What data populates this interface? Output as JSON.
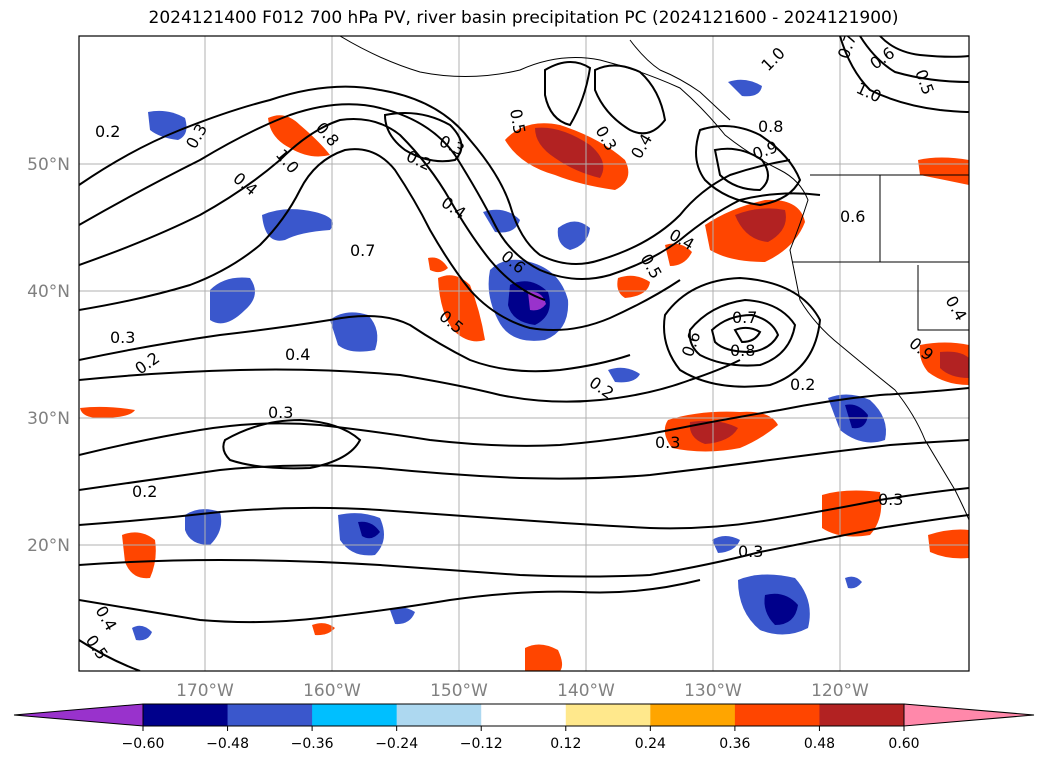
{
  "title": "2024121400 F012 700 hPa PV, river basin precipitation PC (2024121600 - 2024121900)",
  "lat_labels": [
    "50°N",
    "40°N",
    "30°N",
    "20°N"
  ],
  "lon_labels": [
    "170°W",
    "160°W",
    "150°W",
    "140°W",
    "130°W",
    "120°W"
  ],
  "colorbar": {
    "ticks": [
      "−0.60",
      "−0.48",
      "−0.36",
      "−0.24",
      "−0.12",
      "0.12",
      "0.24",
      "0.36",
      "0.48",
      "0.60"
    ],
    "colors": [
      "#9932cc",
      "#00008b",
      "#3a57cc",
      "#00bfff",
      "#add8f0",
      "#ffffff",
      "#ffe88c",
      "#ffa500",
      "#ff4500",
      "#b22222",
      "#ff88aa"
    ]
  },
  "contour_labels": [
    "0.2",
    "0.3",
    "0.4",
    "1.0",
    "0.8",
    "0.5",
    "0.3",
    "0.2",
    "0.4",
    "0.7",
    "0.6",
    "0.5",
    "0.3",
    "0.4",
    "0.8",
    "1.0",
    "0.9",
    "0.4",
    "0.5",
    "0.6",
    "0.7",
    "0.8",
    "0.6",
    "0.2",
    "0.3",
    "0.2",
    "0.2",
    "0.3",
    "0.4",
    "0.3",
    "0.2",
    "0.3",
    "0.3",
    "0.4",
    "0.5",
    "0.6",
    "1.0",
    "0.7",
    "0.5",
    "0.4",
    "0.9"
  ]
}
